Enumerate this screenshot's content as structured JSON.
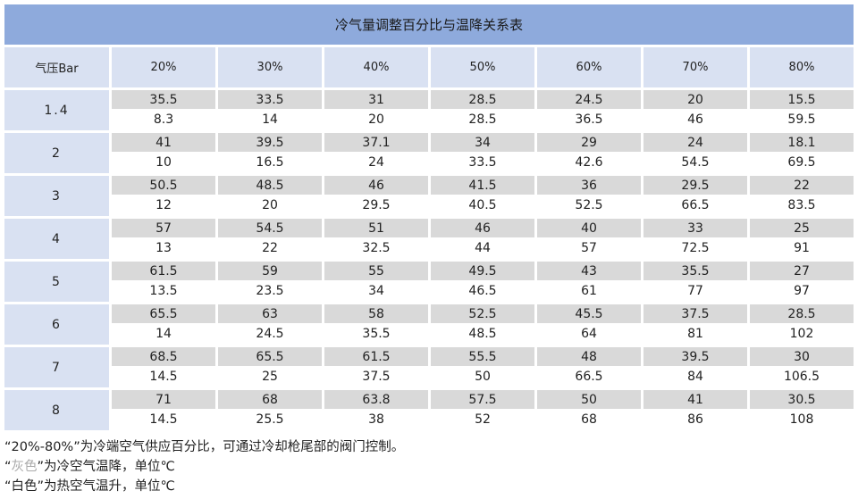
{
  "title": "冷气量调整百分比与温降关系表",
  "header": {
    "pressure_label": "气压Bar",
    "percents": [
      "20%",
      "30%",
      "40%",
      "50%",
      "60%",
      "70%",
      "80%"
    ]
  },
  "rows": [
    {
      "pressure": "1.4",
      "cold": [
        "35.5",
        "33.5",
        "31",
        "28.5",
        "24.5",
        "20",
        "15.5"
      ],
      "hot": [
        "8.3",
        "14",
        "20",
        "28.5",
        "36.5",
        "46",
        "59.5"
      ]
    },
    {
      "pressure": "2",
      "cold": [
        "41",
        "39.5",
        "37.1",
        "34",
        "29",
        "24",
        "18.1"
      ],
      "hot": [
        "10",
        "16.5",
        "24",
        "33.5",
        "42.6",
        "54.5",
        "69.5"
      ]
    },
    {
      "pressure": "3",
      "cold": [
        "50.5",
        "48.5",
        "46",
        "41.5",
        "36",
        "29.5",
        "22"
      ],
      "hot": [
        "12",
        "20",
        "29.5",
        "40.5",
        "52.5",
        "66.5",
        "83.5"
      ]
    },
    {
      "pressure": "4",
      "cold": [
        "57",
        "54.5",
        "51",
        "46",
        "40",
        "33",
        "25"
      ],
      "hot": [
        "13",
        "22",
        "32.5",
        "44",
        "57",
        "72.5",
        "91"
      ]
    },
    {
      "pressure": "5",
      "cold": [
        "61.5",
        "59",
        "55",
        "49.5",
        "43",
        "35.5",
        "27"
      ],
      "hot": [
        "13.5",
        "23.5",
        "34",
        "46.5",
        "61",
        "77",
        "97"
      ]
    },
    {
      "pressure": "6",
      "cold": [
        "65.5",
        "63",
        "58",
        "52.5",
        "45.5",
        "37.5",
        "28.5"
      ],
      "hot": [
        "14",
        "24.5",
        "35.5",
        "48.5",
        "64",
        "81",
        "102"
      ]
    },
    {
      "pressure": "7",
      "cold": [
        "68.5",
        "65.5",
        "61.5",
        "55.5",
        "48",
        "39.5",
        "30"
      ],
      "hot": [
        "14.5",
        "25",
        "37.5",
        "50",
        "66.5",
        "84",
        "106.5"
      ]
    },
    {
      "pressure": "8",
      "cold": [
        "71",
        "68",
        "63.8",
        "57.5",
        "50",
        "41",
        "30.5"
      ],
      "hot": [
        "14.5",
        "25.5",
        "38",
        "52",
        "68",
        "86",
        "108"
      ]
    }
  ],
  "notes": {
    "line1": "“20%-80%”为冷端空气供应百分比，可通过冷却枪尾部的阀门控制。",
    "line2_open": "“",
    "line2_gray": "灰色",
    "line2_rest": "”为冷空气温降，单位℃",
    "line3": "“白色”为热空气温升，单位℃"
  },
  "colors": {
    "title_bg": "#8eaadc",
    "header_bg": "#d9e1f2",
    "cold_bg": "#d9d9d9",
    "hot_bg": "#ffffff"
  }
}
